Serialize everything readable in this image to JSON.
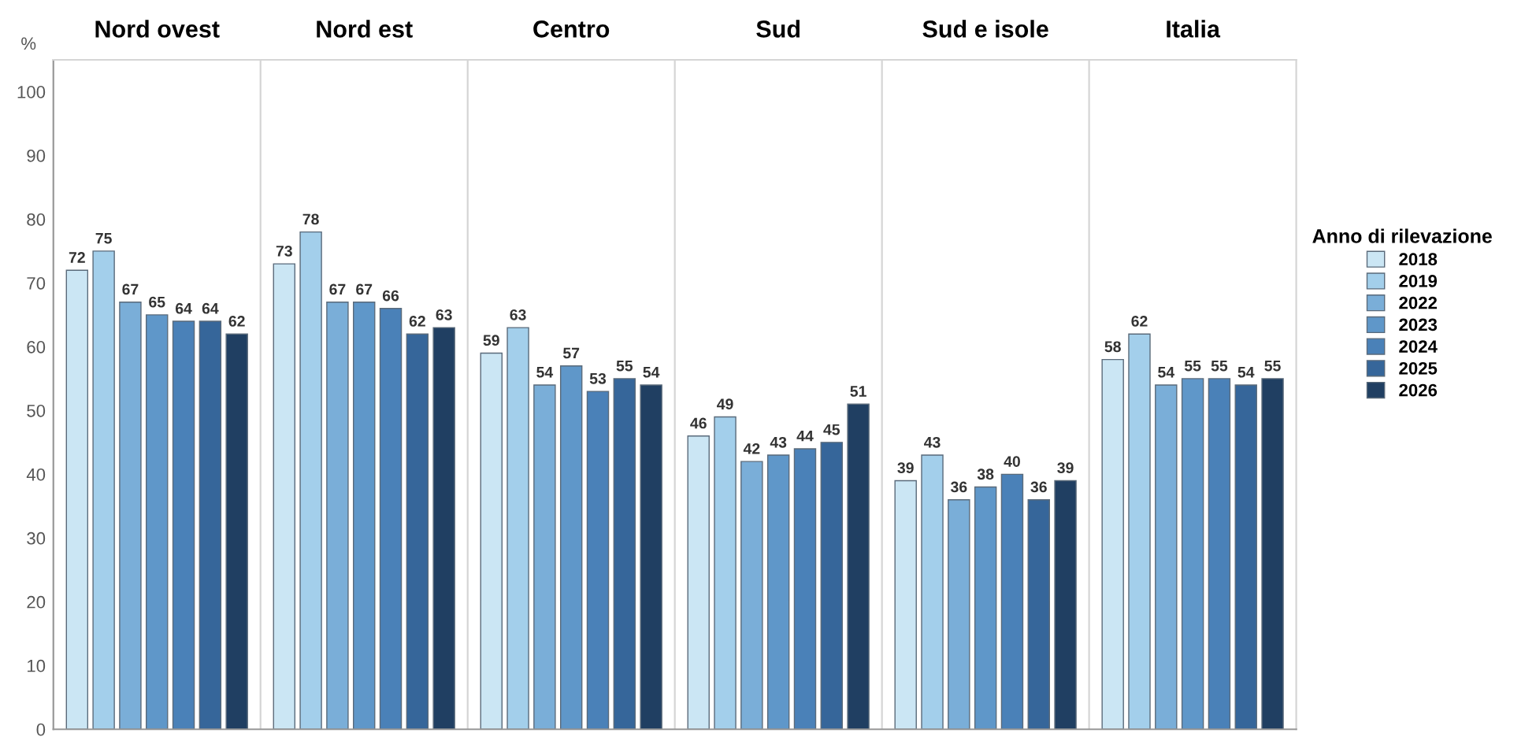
{
  "chart_data": {
    "type": "bar",
    "ylabel": "%",
    "legend_title": "Anno di rilevazione",
    "legend": "right",
    "categories": [
      "Nord ovest",
      "Nord est",
      "Centro",
      "Sud",
      "Sud e isole",
      "Italia"
    ],
    "series": [
      {
        "name": "2018",
        "color": "#cbe6f4",
        "values": [
          72,
          73,
          59,
          46,
          39,
          58
        ]
      },
      {
        "name": "2019",
        "color": "#a3cfeb",
        "values": [
          75,
          78,
          63,
          49,
          43,
          62
        ]
      },
      {
        "name": "2022",
        "color": "#7aaed8",
        "values": [
          67,
          67,
          54,
          42,
          36,
          54
        ]
      },
      {
        "name": "2023",
        "color": "#5f97c9",
        "values": [
          65,
          67,
          57,
          43,
          38,
          55
        ]
      },
      {
        "name": "2024",
        "color": "#4a81b8",
        "values": [
          64,
          66,
          53,
          44,
          40,
          55
        ]
      },
      {
        "name": "2025",
        "color": "#36669a",
        "values": [
          64,
          62,
          55,
          45,
          36,
          54
        ]
      },
      {
        "name": "2026",
        "color": "#203f62",
        "values": [
          62,
          63,
          54,
          51,
          39,
          55
        ]
      }
    ],
    "ylim": [
      0,
      105
    ],
    "yticks": [
      0,
      10,
      20,
      30,
      40,
      50,
      60,
      70,
      80,
      90,
      100
    ],
    "grid": false,
    "data_labels": true
  }
}
